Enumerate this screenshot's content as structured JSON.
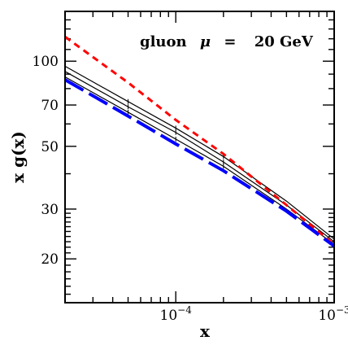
{
  "chart_data": {
    "type": "line",
    "title": "",
    "annotation": {
      "label": "gluon",
      "mu_symbol": "μ",
      "equals": "=",
      "value": "20 GeV"
    },
    "xlabel": "x",
    "ylabel": "x g(x)",
    "xscale": "log",
    "yscale": "log",
    "xlim": [
      2e-05,
      0.001
    ],
    "ylim": [
      14,
      150
    ],
    "x_ticks": [
      {
        "value": 0.0001,
        "base": "10",
        "exp": "−4"
      },
      {
        "value": 0.001,
        "base": "10",
        "exp": "−3"
      }
    ],
    "y_ticks": [
      {
        "value": 20,
        "label": "20"
      },
      {
        "value": 30,
        "label": "30"
      },
      {
        "value": 50,
        "label": "50"
      },
      {
        "value": 70,
        "label": "70"
      },
      {
        "value": 100,
        "label": "100"
      }
    ],
    "grid": false,
    "legend": "none",
    "series": [
      {
        "style": "solid-black-upper",
        "color": "#000000",
        "x": [
          2e-05,
          5e-05,
          0.0001,
          0.0002,
          0.0005,
          0.001
        ],
        "y": [
          96,
          72,
          58,
          46,
          32,
          23.5
        ]
      },
      {
        "style": "solid-black-middle",
        "color": "#000000",
        "x": [
          2e-05,
          5e-05,
          0.0001,
          0.0002,
          0.0005,
          0.001
        ],
        "y": [
          92,
          69,
          56,
          44,
          31,
          23
        ]
      },
      {
        "style": "solid-black-lower",
        "color": "#000000",
        "x": [
          2e-05,
          5e-05,
          0.0001,
          0.0002,
          0.0005,
          0.001
        ],
        "y": [
          88,
          66,
          53,
          42.5,
          30,
          22.5
        ]
      },
      {
        "style": "dashed-red",
        "color": "#ff0000",
        "x": [
          2e-05,
          5e-05,
          0.0001,
          0.0002,
          0.0005,
          0.001
        ],
        "y": [
          122,
          84,
          62,
          47,
          31,
          22.5
        ]
      },
      {
        "style": "longdash-blue",
        "color": "#0000ff",
        "x": [
          2e-05,
          5e-05,
          0.0001,
          0.0002,
          0.0005,
          0.001
        ],
        "y": [
          86,
          64,
          51,
          41,
          29.5,
          22.2
        ]
      }
    ]
  }
}
